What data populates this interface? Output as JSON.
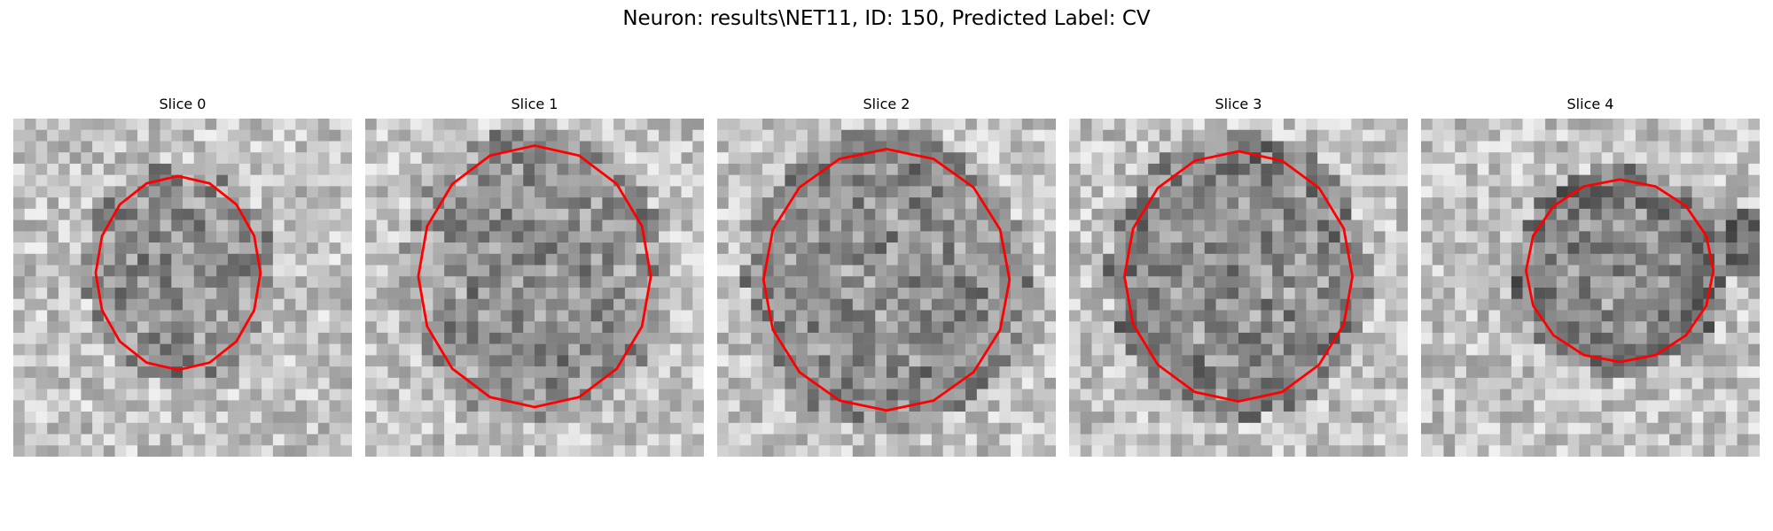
{
  "figure": {
    "title": "Neuron: results\\NET11, ID: 150, Predicted Label: CV"
  },
  "slices": [
    {
      "title": "Slice 0"
    },
    {
      "title": "Slice 1"
    },
    {
      "title": "Slice 2"
    },
    {
      "title": "Slice 3"
    },
    {
      "title": "Slice 4"
    }
  ],
  "colors": {
    "contour": "#ff0000",
    "background": "#ffffff"
  }
}
